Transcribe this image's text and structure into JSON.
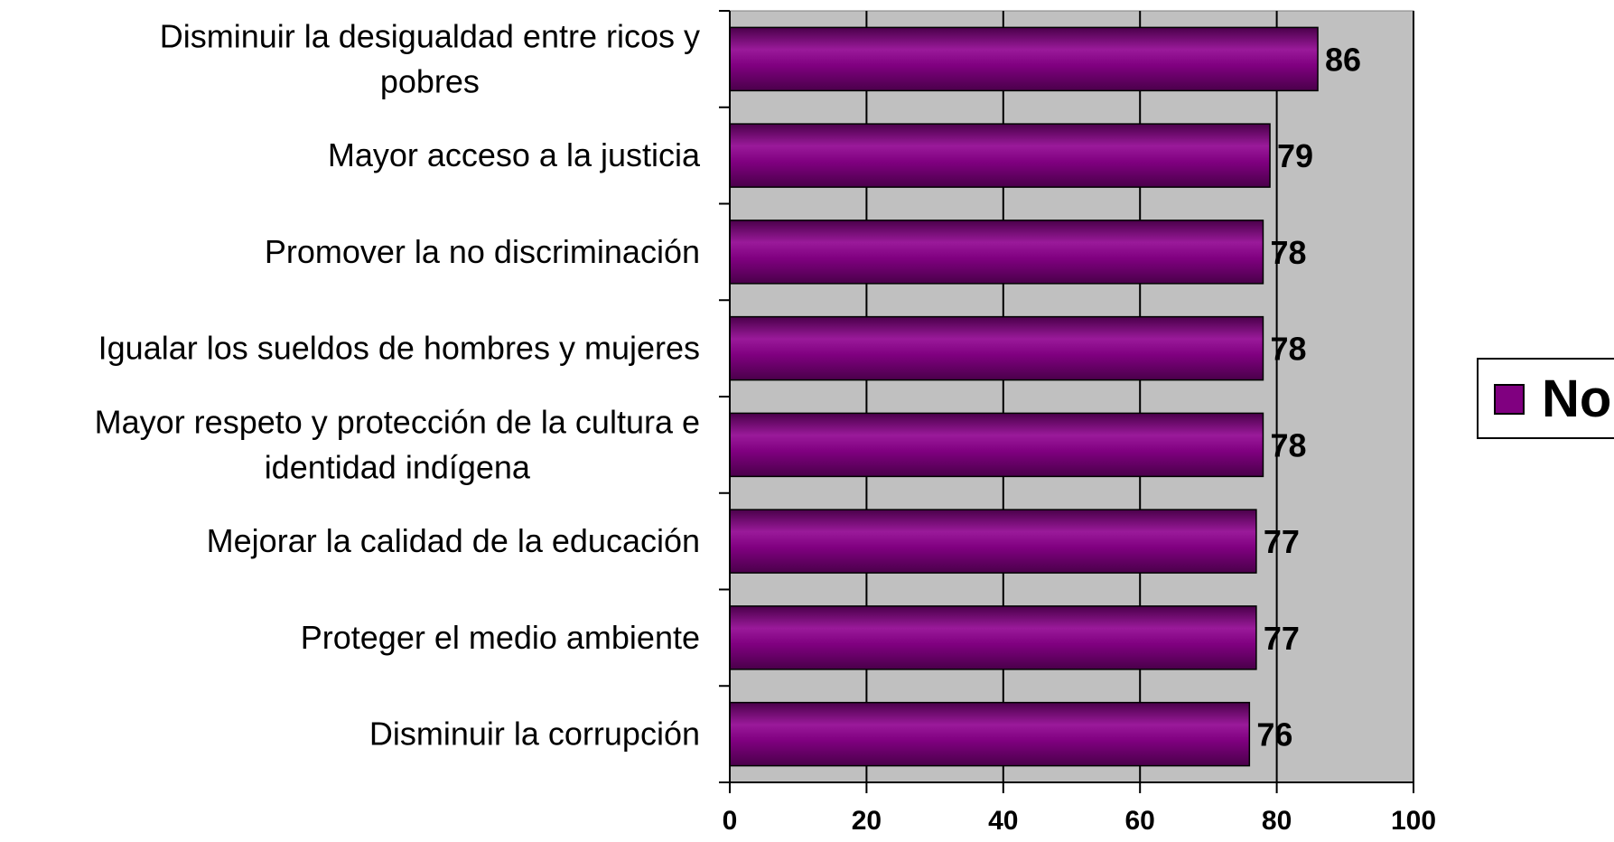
{
  "chart_data": {
    "type": "bar",
    "orientation": "horizontal",
    "categories": [
      [
        "Disminuir la desigualdad entre ricos y",
        "pobres"
      ],
      [
        "Mayor acceso a la justicia"
      ],
      [
        "Promover la no discriminación"
      ],
      [
        "Igualar los sueldos de hombres y mujeres"
      ],
      [
        "Mayor respeto y protección de la cultura e",
        "identidad indígena"
      ],
      [
        "Mejorar la calidad de la educación"
      ],
      [
        "Proteger el medio ambiente"
      ],
      [
        "Disminuir la corrupción"
      ]
    ],
    "series": [
      {
        "name": "No",
        "values": [
          86,
          79,
          78,
          78,
          78,
          77,
          77,
          76
        ]
      }
    ],
    "data_labels": [
      "86",
      "79",
      "78",
      "78",
      "78",
      "77",
      "77",
      "76"
    ],
    "xlim": [
      0,
      100
    ],
    "xticks": [
      "0",
      "20",
      "40",
      "60",
      "80",
      "100"
    ],
    "grid": true,
    "legend": "right",
    "colors": {
      "bar": "#800080",
      "bar_highlight": "#9a1a9a",
      "bar_shadow": "#4a004a",
      "plot_background": "#c0c0c0",
      "gridline": "#000000"
    }
  }
}
